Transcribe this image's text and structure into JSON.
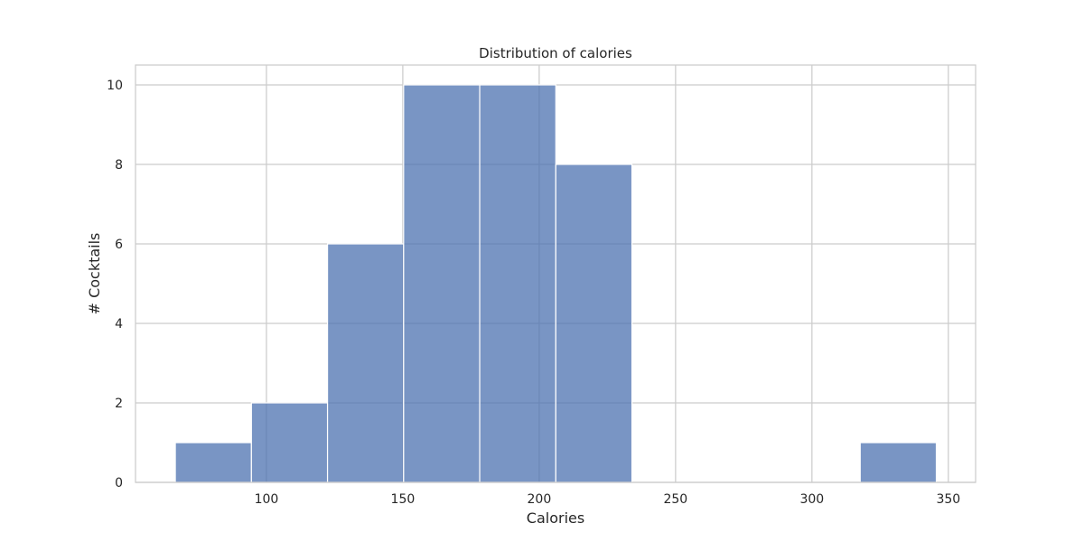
{
  "chart_data": {
    "type": "bar",
    "title": "Distribution of calories",
    "xlabel": "Calories",
    "ylabel": "# Cocktails",
    "xlim": [
      52,
      360
    ],
    "ylim": [
      0,
      10.5
    ],
    "grid": true,
    "bar_color": "#4c72b0",
    "bin_edges": [
      66.6,
      94.5,
      122.4,
      150.3,
      178.2,
      206.1,
      234.0,
      261.9,
      289.8,
      317.7,
      345.6
    ],
    "counts": [
      1,
      2,
      6,
      10,
      10,
      8,
      0,
      0,
      0,
      1
    ],
    "x_ticks": [
      100,
      150,
      200,
      250,
      300,
      350
    ],
    "y_ticks": [
      0,
      2,
      4,
      6,
      8,
      10
    ]
  }
}
